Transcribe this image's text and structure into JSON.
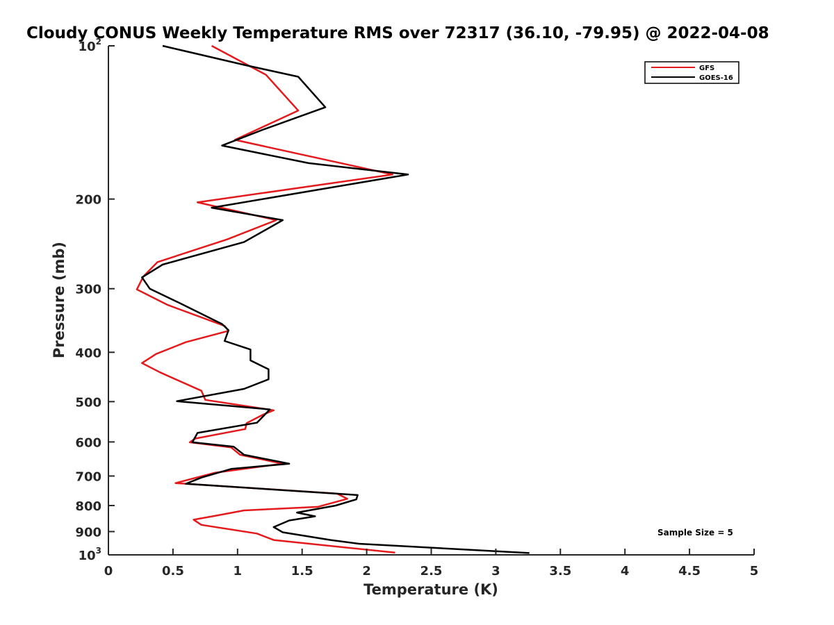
{
  "chart_data": {
    "type": "line",
    "title": "Cloudy CONUS Weekly Temperature RMS over 72317 (36.10, -79.95) @ 2022-04-08",
    "xlabel": "Temperature (K)",
    "ylabel": "Pressure (mb)",
    "xlim": [
      0,
      5
    ],
    "ylim": [
      100,
      1000
    ],
    "yscale": "log",
    "y_reversed": true,
    "grid": false,
    "legend_position": "top-right",
    "x_ticks": [
      "0",
      "0.5",
      "1",
      "1.5",
      "2",
      "2.5",
      "3",
      "3.5",
      "4",
      "4.5",
      "5"
    ],
    "x_tick_values": [
      0,
      0.5,
      1,
      1.5,
      2,
      2.5,
      3,
      3.5,
      4,
      4.5,
      5
    ],
    "y_ticks": [
      {
        "value": 100,
        "base": "10",
        "sup": "2"
      },
      {
        "value": 200,
        "label": "200"
      },
      {
        "value": 300,
        "label": "300"
      },
      {
        "value": 400,
        "label": "400"
      },
      {
        "value": 500,
        "label": "500"
      },
      {
        "value": 600,
        "label": "600"
      },
      {
        "value": 700,
        "label": "700"
      },
      {
        "value": 800,
        "label": "800"
      },
      {
        "value": 900,
        "label": "900"
      },
      {
        "value": 1000,
        "base": "10",
        "sup": "3"
      }
    ],
    "series": [
      {
        "name": "GFS",
        "color": "#e41a1c",
        "points": [
          [
            0.8,
            100
          ],
          [
            1.22,
            114
          ],
          [
            1.47,
            134
          ],
          [
            0.98,
            153
          ],
          [
            2.2,
            179
          ],
          [
            0.69,
            203
          ],
          [
            1.3,
            220
          ],
          [
            0.92,
            240
          ],
          [
            0.38,
            266
          ],
          [
            0.27,
            284
          ],
          [
            0.22,
            301
          ],
          [
            0.46,
            323
          ],
          [
            0.9,
            355
          ],
          [
            0.93,
            363
          ],
          [
            0.6,
            382
          ],
          [
            0.37,
            403
          ],
          [
            0.26,
            420
          ],
          [
            0.4,
            438
          ],
          [
            0.72,
            476
          ],
          [
            0.75,
            496
          ],
          [
            1.28,
            520
          ],
          [
            1.2,
            530
          ],
          [
            1.07,
            551
          ],
          [
            1.06,
            566
          ],
          [
            0.67,
            591
          ],
          [
            0.63,
            601
          ],
          [
            0.95,
            615
          ],
          [
            1.02,
            636
          ],
          [
            1.35,
            662
          ],
          [
            0.82,
            690
          ],
          [
            0.52,
            723
          ],
          [
            1.77,
            758
          ],
          [
            1.85,
            776
          ],
          [
            1.62,
            805
          ],
          [
            1.05,
            818
          ],
          [
            0.85,
            836
          ],
          [
            0.66,
            853
          ],
          [
            0.72,
            873
          ],
          [
            1.15,
            908
          ],
          [
            1.28,
            935
          ],
          [
            2.22,
            990
          ]
        ]
      },
      {
        "name": "GOES-16",
        "color": "#000000",
        "points": [
          [
            0.42,
            100
          ],
          [
            1.05,
            109
          ],
          [
            1.47,
            115
          ],
          [
            1.68,
            132
          ],
          [
            1.2,
            146
          ],
          [
            0.88,
            157
          ],
          [
            1.55,
            170
          ],
          [
            2.32,
            179
          ],
          [
            0.8,
            208
          ],
          [
            1.35,
            220
          ],
          [
            1.05,
            243
          ],
          [
            0.42,
            269
          ],
          [
            0.26,
            285
          ],
          [
            0.32,
            300
          ],
          [
            0.55,
            320
          ],
          [
            0.88,
            352
          ],
          [
            0.93,
            362
          ],
          [
            0.9,
            380
          ],
          [
            1.1,
            395
          ],
          [
            1.1,
            415
          ],
          [
            1.24,
            432
          ],
          [
            1.24,
            452
          ],
          [
            1.05,
            472
          ],
          [
            0.53,
            499
          ],
          [
            1.25,
            518
          ],
          [
            1.15,
            550
          ],
          [
            0.69,
            576
          ],
          [
            0.65,
            601
          ],
          [
            0.97,
            613
          ],
          [
            1.05,
            636
          ],
          [
            1.4,
            662
          ],
          [
            0.95,
            678
          ],
          [
            0.72,
            705
          ],
          [
            0.6,
            725
          ],
          [
            1.93,
            763
          ],
          [
            1.92,
            778
          ],
          [
            1.76,
            800
          ],
          [
            1.46,
            826
          ],
          [
            1.6,
            840
          ],
          [
            1.4,
            856
          ],
          [
            1.28,
            882
          ],
          [
            1.35,
            903
          ],
          [
            1.72,
            935
          ],
          [
            1.94,
            951
          ],
          [
            3.26,
            992
          ]
        ]
      }
    ],
    "annotation": "Sample Size = 5"
  }
}
